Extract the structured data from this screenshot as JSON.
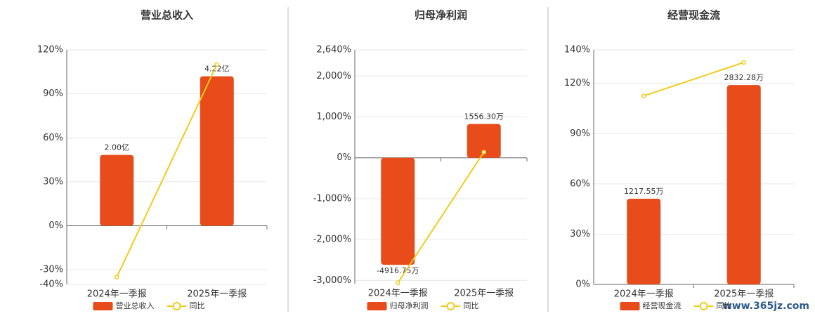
{
  "chart_data": [
    {
      "type": "bar-line",
      "title": "营业总收入",
      "categories": [
        "2024年一季报",
        "2025年一季报"
      ],
      "series": [
        {
          "name": "营业总收入",
          "color": "#e84c1a",
          "values": [
            2.0,
            4.22
          ],
          "value_labels": [
            "2.00亿",
            "4.22亿"
          ]
        },
        {
          "name": "同比",
          "color": "#f0cc1a",
          "values": [
            -35,
            110
          ]
        }
      ],
      "ylim": [
        -40,
        120
      ],
      "yticks": [
        {
          "value": -40,
          "label": "-40%"
        },
        {
          "value": -30,
          "label": "-30%"
        },
        {
          "value": 0,
          "label": "0%"
        },
        {
          "value": 30,
          "label": "30%"
        },
        {
          "value": 60,
          "label": "60%"
        },
        {
          "value": 90,
          "label": "90%"
        },
        {
          "value": 120,
          "label": "120%"
        }
      ],
      "grid": true
    },
    {
      "type": "bar-line",
      "title": "归母净利润",
      "categories": [
        "2024年一季报",
        "2025年一季报"
      ],
      "series": [
        {
          "name": "归母净利润",
          "color": "#e84c1a",
          "values": [
            -4916.75,
            1556.3
          ],
          "value_labels": [
            "-4916.75万",
            "1556.30万"
          ]
        },
        {
          "name": "同比",
          "color": "#f0cc1a",
          "values": [
            -3060,
            138
          ]
        }
      ],
      "ylim": [
        -3080,
        2640
      ],
      "yticks": [
        {
          "value": -3000,
          "label": "-3,000%"
        },
        {
          "value": -2000,
          "label": "-2,000%"
        },
        {
          "value": -1000,
          "label": "-1,000%"
        },
        {
          "value": 0,
          "label": "0%"
        },
        {
          "value": 1000,
          "label": "1,000%"
        },
        {
          "value": 2000,
          "label": "2,000%"
        },
        {
          "value": 2640,
          "label": "2,640%"
        }
      ],
      "grid": true
    },
    {
      "type": "bar-line",
      "title": "经营现金流",
      "categories": [
        "2024年一季报",
        "2025年一季报"
      ],
      "series": [
        {
          "name": "经营现金流",
          "color": "#e84c1a",
          "values": [
            1217.55,
            2832.28
          ],
          "value_labels": [
            "1217.55万",
            "2832.28万"
          ]
        },
        {
          "name": "同比",
          "color": "#f0cc1a",
          "values": [
            112.5,
            132.5
          ]
        }
      ],
      "ylim": [
        0,
        140
      ],
      "yticks": [
        {
          "value": 0,
          "label": "0%"
        },
        {
          "value": 30,
          "label": "30%"
        },
        {
          "value": 60,
          "label": "60%"
        },
        {
          "value": 90,
          "label": "90%"
        },
        {
          "value": 120,
          "label": "120%"
        },
        {
          "value": 140,
          "label": "140%"
        }
      ],
      "grid": true
    }
  ],
  "watermark": "www.365jz.com"
}
